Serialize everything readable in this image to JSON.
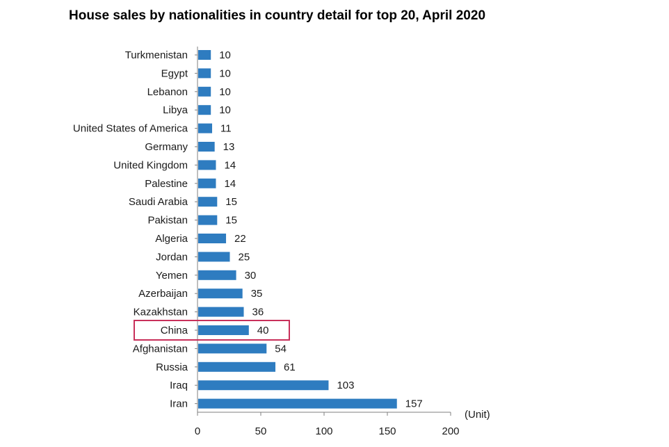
{
  "chart_data": {
    "type": "bar",
    "orientation": "horizontal",
    "title": "House sales by nationalities in country detail for top 20, April 2020",
    "categories": [
      "Turkmenistan",
      "Egypt",
      "Lebanon",
      "Libya",
      "United States of America",
      "Germany",
      "United Kingdom",
      "Palestine",
      "Saudi Arabia",
      "Pakistan",
      "Algeria",
      "Jordan",
      "Yemen",
      "Azerbaijan",
      "Kazakhstan",
      "China",
      "Afghanistan",
      "Russia",
      "Iraq",
      "Iran"
    ],
    "values": [
      10,
      10,
      10,
      10,
      11,
      13,
      14,
      14,
      15,
      15,
      22,
      25,
      30,
      35,
      36,
      40,
      54,
      61,
      103,
      157
    ],
    "value_labels": [
      "10",
      "10",
      "10",
      "10",
      "11",
      "13",
      "14",
      "14",
      "15",
      "15",
      "22",
      "25",
      "30",
      "35",
      "36",
      "40",
      "54",
      "61",
      "103",
      "157"
    ],
    "xlim": [
      0,
      200
    ],
    "xticks": [
      0,
      50,
      100,
      150,
      200
    ],
    "xtick_labels": [
      "0",
      "50",
      "100",
      "150",
      "200"
    ],
    "unit_label": "(Unit)",
    "grid": false,
    "bar_color": "#2e7cc0",
    "highlight": {
      "category": "China",
      "color": "#c8305a"
    }
  }
}
